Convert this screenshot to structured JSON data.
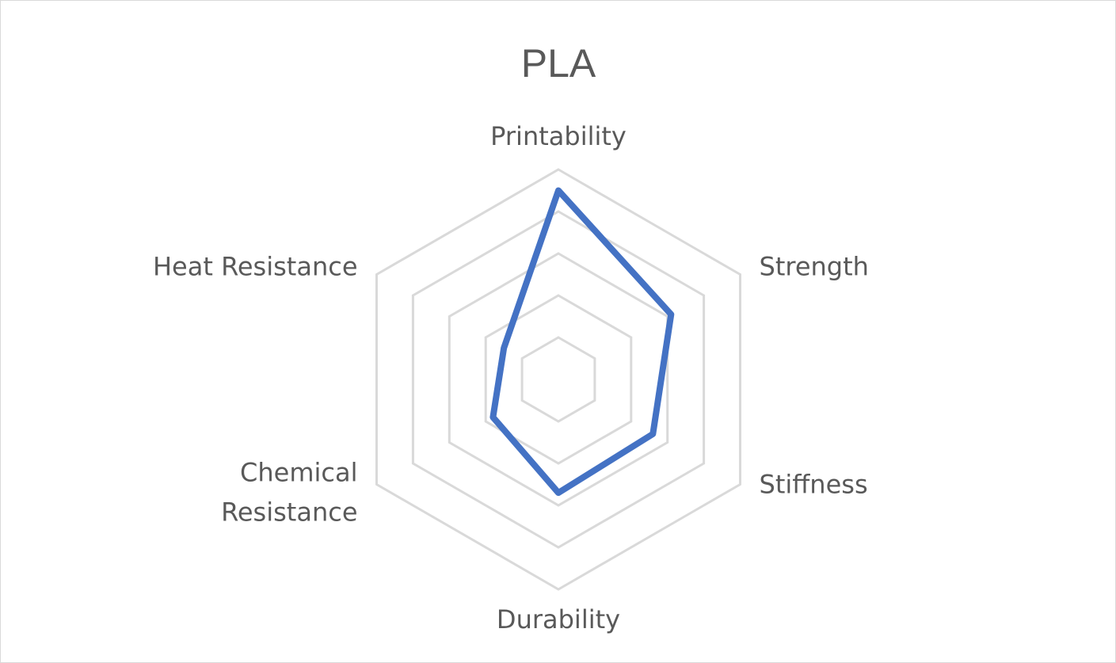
{
  "chart_data": {
    "type": "radar",
    "title": "PLA",
    "categories": [
      "Printability",
      "Strength",
      "Stiffness",
      "Durability",
      "Chemical Resistance",
      "Heat Resistance"
    ],
    "category_lines": [
      [
        "Printability"
      ],
      [
        "Strength"
      ],
      [
        "Stiffness"
      ],
      [
        "Durability"
      ],
      [
        "Chemical",
        "Resistance"
      ],
      [
        "Heat Resistance"
      ]
    ],
    "series": [
      {
        "values": [
          4.5,
          3.1,
          2.6,
          2.7,
          1.8,
          1.5
        ],
        "color": "#4472c4"
      }
    ],
    "r_range": [
      0,
      5
    ],
    "gridlines": true,
    "legend": "none"
  }
}
